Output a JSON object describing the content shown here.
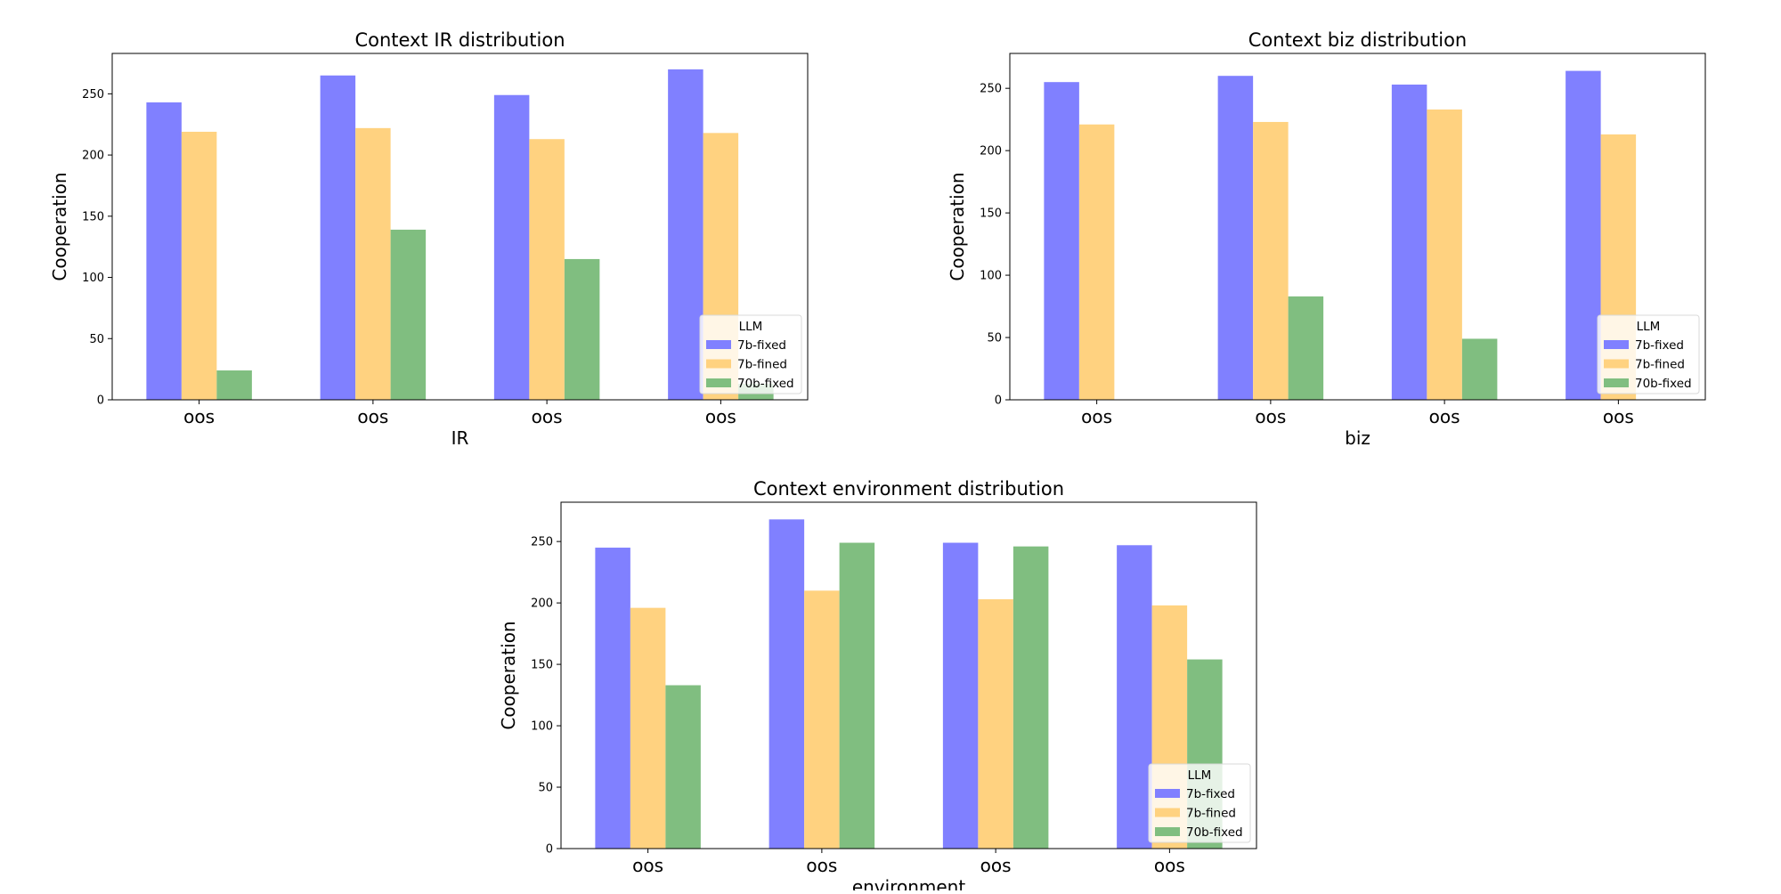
{
  "chart_data": [
    {
      "type": "bar",
      "title": "Context IR distribution",
      "xlabel": "IR",
      "ylabel": "Cooperation",
      "categories": [
        "oos",
        "oos",
        "oos",
        "oos"
      ],
      "ylim": [
        0,
        283
      ],
      "yticks": [
        0,
        50,
        100,
        150,
        200,
        250
      ],
      "grid": false,
      "legend": {
        "title": "LLM",
        "placement": "lower-right"
      },
      "series": [
        {
          "name": "7b-fixed",
          "color": "#8080ff",
          "values": [
            243,
            265,
            249,
            270
          ]
        },
        {
          "name": "7b-fined",
          "color": "#ffd280",
          "values": [
            219,
            222,
            213,
            218
          ]
        },
        {
          "name": "70b-fixed",
          "color": "#80be80",
          "values": [
            24,
            139,
            115,
            13
          ]
        }
      ]
    },
    {
      "type": "bar",
      "title": "Context biz distribution",
      "xlabel": "biz",
      "ylabel": "Cooperation",
      "categories": [
        "oos",
        "oos",
        "oos",
        "oos"
      ],
      "ylim": [
        0,
        278
      ],
      "yticks": [
        0,
        50,
        100,
        150,
        200,
        250
      ],
      "grid": false,
      "legend": {
        "title": "LLM",
        "placement": "lower-right"
      },
      "series": [
        {
          "name": "7b-fixed",
          "color": "#8080ff",
          "values": [
            255,
            260,
            253,
            264
          ]
        },
        {
          "name": "7b-fined",
          "color": "#ffd280",
          "values": [
            221,
            223,
            233,
            213
          ]
        },
        {
          "name": "70b-fixed",
          "color": "#80be80",
          "values": [
            0,
            83,
            49,
            0
          ]
        }
      ]
    },
    {
      "type": "bar",
      "title": "Context environment distribution",
      "xlabel": "environment",
      "ylabel": "Cooperation",
      "categories": [
        "oos",
        "oos",
        "oos",
        "oos"
      ],
      "ylim": [
        0,
        282
      ],
      "yticks": [
        0,
        50,
        100,
        150,
        200,
        250
      ],
      "grid": false,
      "legend": {
        "title": "LLM",
        "placement": "lower-right"
      },
      "series": [
        {
          "name": "7b-fixed",
          "color": "#8080ff",
          "values": [
            245,
            268,
            249,
            247
          ]
        },
        {
          "name": "7b-fined",
          "color": "#ffd280",
          "values": [
            196,
            210,
            203,
            198
          ]
        },
        {
          "name": "70b-fixed",
          "color": "#80be80",
          "values": [
            133,
            249,
            246,
            154
          ]
        }
      ]
    }
  ]
}
